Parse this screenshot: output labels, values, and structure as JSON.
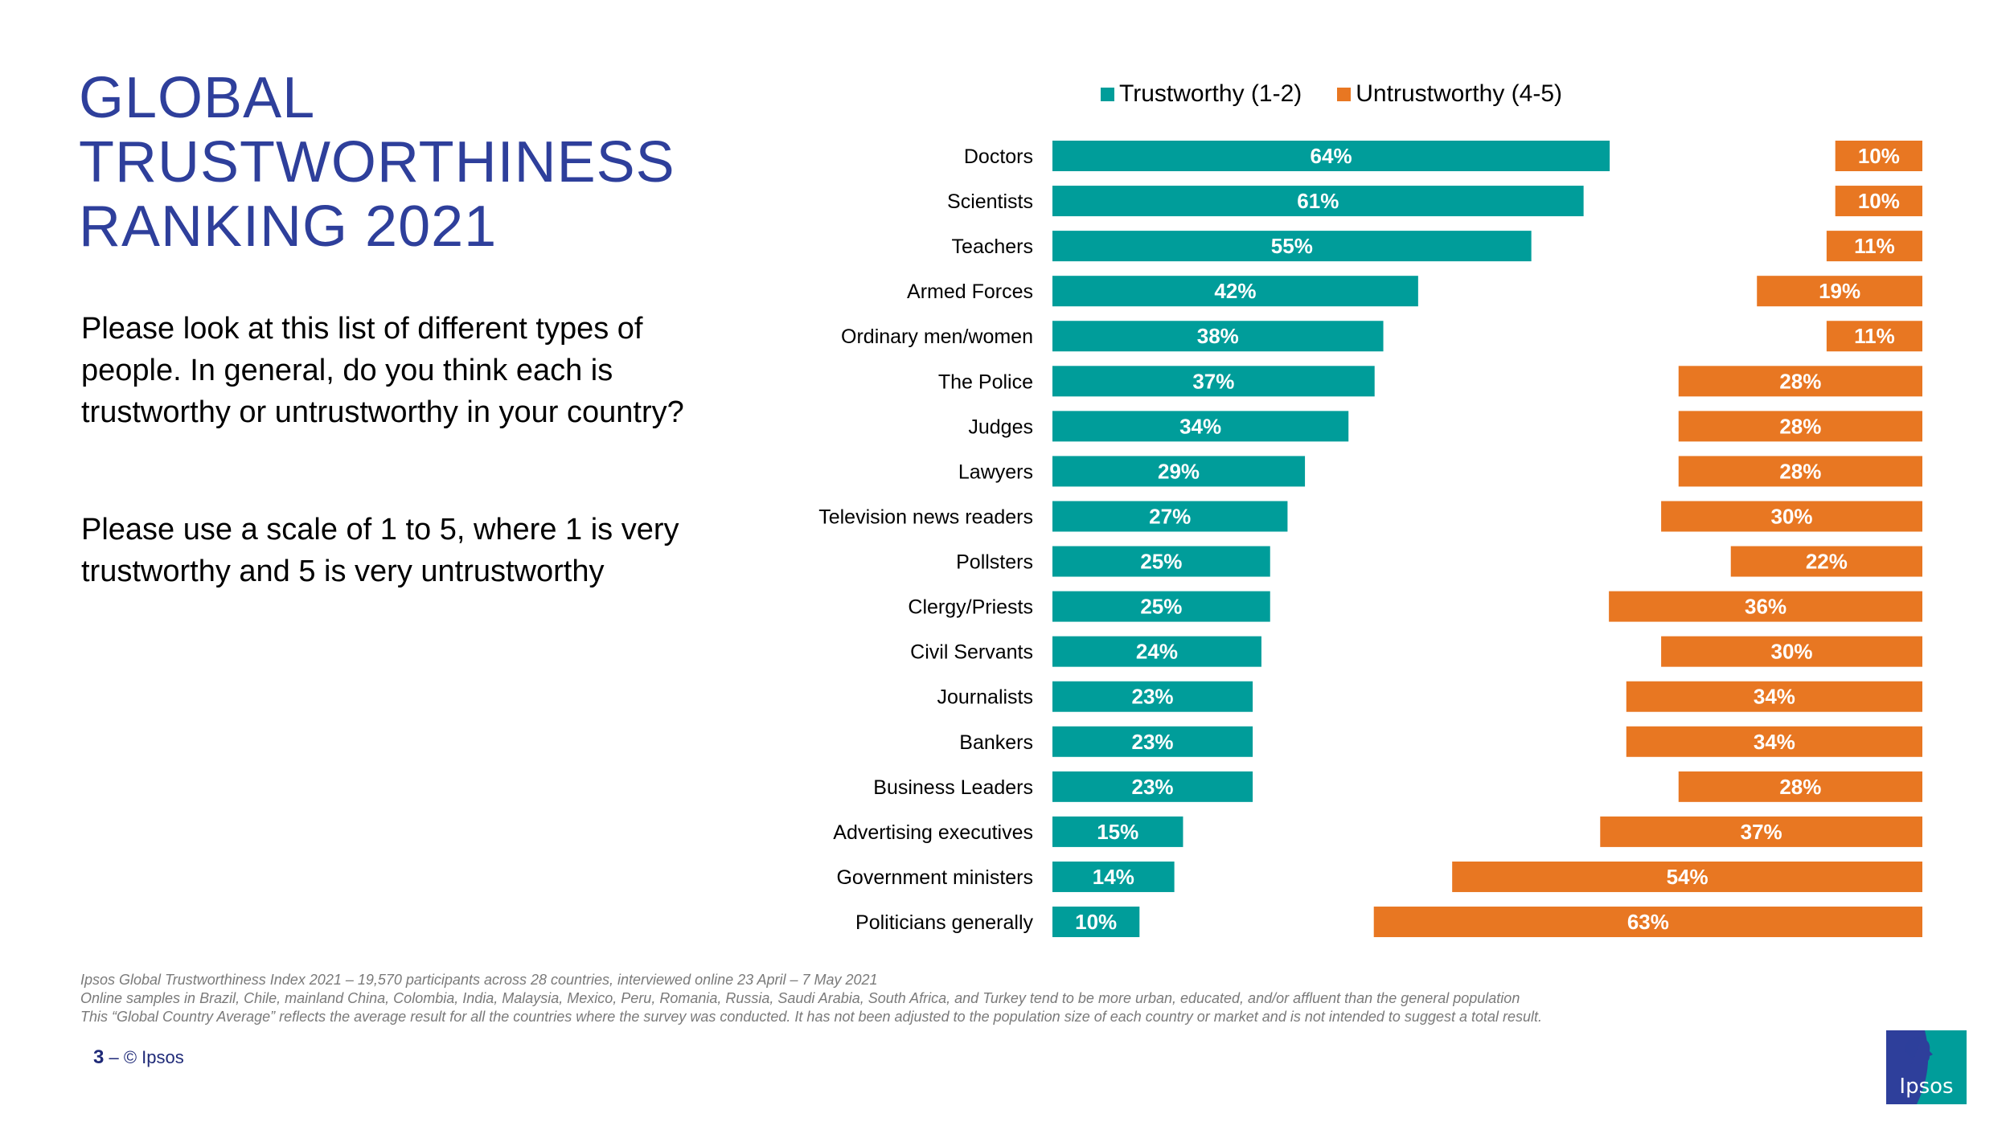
{
  "title_lines": [
    "GLOBAL",
    "TRUSTWORTHINESS",
    "RANKING 2021"
  ],
  "question": {
    "paragraph1": "Please look at this list of different types of people. In general, do you think each is trustworthy or untrustworthy in your country?",
    "paragraph2": "Please use a scale of 1 to 5, where 1 is very trustworthy and 5 is very untrustworthy"
  },
  "colors": {
    "title": "#2E3F9B",
    "trustworthy": "#009D9A",
    "untrustworthy": "#E87722",
    "footer": "#1F2A78"
  },
  "chart_data": {
    "type": "bar",
    "orientation": "horizontal",
    "title": "",
    "xlabel": "",
    "ylabel": "",
    "xlim": [
      0,
      100
    ],
    "grid": false,
    "legend_position": "top",
    "categories": [
      "Doctors",
      "Scientists",
      "Teachers",
      "Armed Forces",
      "Ordinary men/women",
      "The Police",
      "Judges",
      "Lawyers",
      "Television news readers",
      "Pollsters",
      "Clergy/Priests",
      "Civil Servants",
      "Journalists",
      "Bankers",
      "Business Leaders",
      "Advertising executives",
      "Government ministers",
      "Politicians generally"
    ],
    "series": [
      {
        "name": "Trustworthy (1-2)",
        "color": "#009D9A",
        "anchor": "left",
        "values": [
          64,
          61,
          55,
          42,
          38,
          37,
          34,
          29,
          27,
          25,
          25,
          24,
          23,
          23,
          23,
          15,
          14,
          10
        ]
      },
      {
        "name": "Untrustworthy (4-5)",
        "color": "#E87722",
        "anchor": "right",
        "values": [
          10,
          10,
          11,
          19,
          11,
          28,
          28,
          28,
          30,
          22,
          36,
          30,
          34,
          34,
          28,
          37,
          54,
          63
        ]
      }
    ],
    "value_suffix": "%"
  },
  "footnotes": [
    "Ipsos Global Trustworthiness Index 2021 – 19,570 participants across 28 countries, interviewed online 23 April – 7 May 2021",
    "Online samples in Brazil, Chile, mainland China, Colombia, India, Malaysia, Mexico, Peru, Romania, Russia, Saudi Arabia, South Africa, and Turkey tend to be more urban, educated, and/or affluent than the general population",
    "This “Global Country Average” reflects the average result for all the countries where the survey was conducted. It has not been adjusted to the population size of each country or market and is not intended to suggest a total result."
  ],
  "footer": {
    "page_number": "3",
    "separator": " –  ",
    "copyright": "© Ipsos"
  },
  "logo": {
    "text": "Ipsos",
    "icon": "ipsos-logo-icon"
  }
}
